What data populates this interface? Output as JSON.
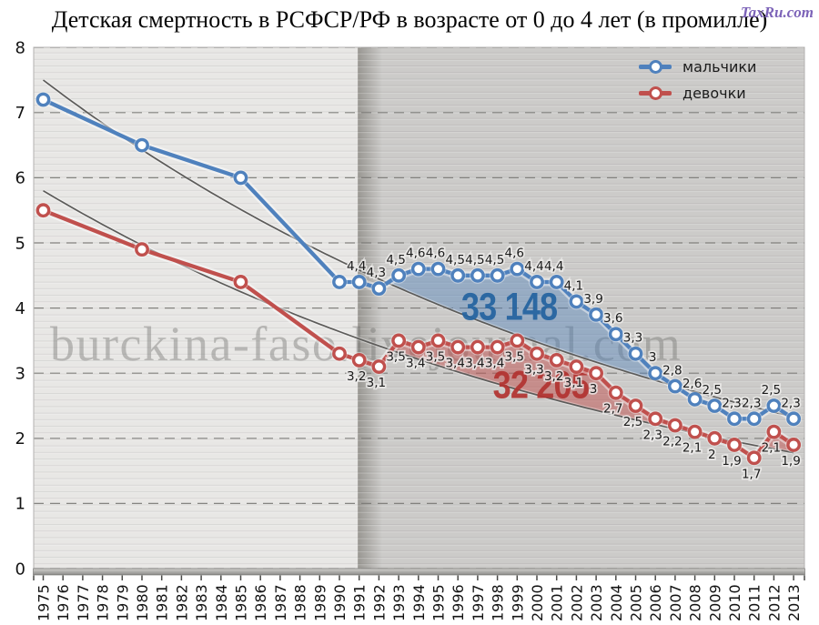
{
  "header": {
    "title": "Детская смертность в РСФСР/РФ в возрасте от 0 до 4 лет (в промилле)",
    "logo": "TaxRu.com"
  },
  "watermark": {
    "text": "burckina-faso.livejournal.com"
  },
  "legend": {
    "items": [
      {
        "label": "мальчики",
        "color": "#4f81bd"
      },
      {
        "label": "девочки",
        "color": "#c0504d"
      }
    ]
  },
  "chart_data": {
    "type": "line",
    "title": "Детская смертность в РСФСР/РФ в возрасте от 0 до 4 лет (в промилле)",
    "xlabel": "",
    "ylabel": "",
    "ylim": [
      0,
      8
    ],
    "y_ticks": [
      "0",
      "1",
      "2",
      "3",
      "4",
      "5",
      "6",
      "7",
      "8"
    ],
    "x_ticks": [
      "1975",
      "1976",
      "1977",
      "1978",
      "1979",
      "1980",
      "1981",
      "1982",
      "1983",
      "1984",
      "1985",
      "1986",
      "1987",
      "1988",
      "1989",
      "1990",
      "1991",
      "1992",
      "1993",
      "1994",
      "1995",
      "1996",
      "1997",
      "1998",
      "1999",
      "2000",
      "2001",
      "2002",
      "2003",
      "2004",
      "2005",
      "2006",
      "2007",
      "2008",
      "2009",
      "2010",
      "2011",
      "2012",
      "2013"
    ],
    "grid": "horizontal dashed lines at each integer",
    "legend_position": "top-right",
    "background": {
      "left_region_color": "#e8e7e5",
      "right_region_color": "#cccbc9",
      "divider_year": 1991,
      "divider_shadow_color": "#999792"
    },
    "trend_line_color": "#5c5b59",
    "fill_domain": [
      1991,
      2013
    ],
    "series": [
      {
        "name": "мальчики",
        "color": "#4f81bd",
        "fill_color": "rgba(79,129,189,0.42)",
        "label_position": "above",
        "trend": {
          "type": "exponential",
          "start_value": 7.5,
          "end_value": 2.33
        },
        "annotation": {
          "text": "33 148",
          "year": 1998.6,
          "value": 4.03,
          "color": "#24639f"
        },
        "x": [
          1975,
          1980,
          1985,
          1990,
          1991,
          1992,
          1993,
          1994,
          1995,
          1996,
          1997,
          1998,
          1999,
          2000,
          2001,
          2002,
          2003,
          2004,
          2005,
          2006,
          2007,
          2008,
          2009,
          2010,
          2011,
          2012,
          2013
        ],
        "values": [
          7.2,
          6.5,
          6.0,
          4.4,
          4.4,
          4.3,
          4.5,
          4.6,
          4.6,
          4.5,
          4.5,
          4.5,
          4.6,
          4.4,
          4.4,
          4.1,
          3.9,
          3.6,
          3.3,
          3.0,
          2.8,
          2.6,
          2.5,
          2.3,
          2.3,
          2.5,
          2.3
        ],
        "point_labels": [
          "",
          "",
          "",
          "",
          "4,4",
          "4,3",
          "4,5",
          "4,6",
          "4,6",
          "4,5",
          "4,5",
          "4,5",
          "4,6",
          "4,4",
          "4,4",
          "4,1",
          "3,9",
          "3,6",
          "3,3",
          "3",
          "2,8",
          "2,6",
          "2,5",
          "2,3",
          "2,3",
          "2,5",
          "2,3"
        ]
      },
      {
        "name": "девочки",
        "color": "#c0504d",
        "fill_color": "rgba(192,80,77,0.50)",
        "label_position": "below",
        "trend": {
          "type": "exponential",
          "start_value": 5.8,
          "end_value": 1.78
        },
        "annotation": {
          "text": "32 205",
          "year": 2000.2,
          "value": 2.83,
          "color": "#b23330"
        },
        "x": [
          1975,
          1980,
          1985,
          1990,
          1991,
          1992,
          1993,
          1994,
          1995,
          1996,
          1997,
          1998,
          1999,
          2000,
          2001,
          2002,
          2003,
          2004,
          2005,
          2006,
          2007,
          2008,
          2009,
          2010,
          2011,
          2012,
          2013
        ],
        "values": [
          5.5,
          4.9,
          4.4,
          3.3,
          3.2,
          3.1,
          3.5,
          3.4,
          3.5,
          3.4,
          3.4,
          3.4,
          3.5,
          3.3,
          3.2,
          3.1,
          3.0,
          2.7,
          2.5,
          2.3,
          2.2,
          2.1,
          2.0,
          1.9,
          1.7,
          2.1,
          1.9
        ],
        "point_labels": [
          "",
          "",
          "",
          "",
          "3,2",
          "3,1",
          "3,5",
          "3,4",
          "3,5",
          "3,4",
          "3,4",
          "3,4",
          "3,5",
          "3,3",
          "3,2",
          "3,1",
          "3",
          "2,7",
          "2,5",
          "2,3",
          "2,2",
          "2,1",
          "2",
          "1,9",
          "1,7",
          "2,1",
          "1,9"
        ]
      }
    ]
  }
}
